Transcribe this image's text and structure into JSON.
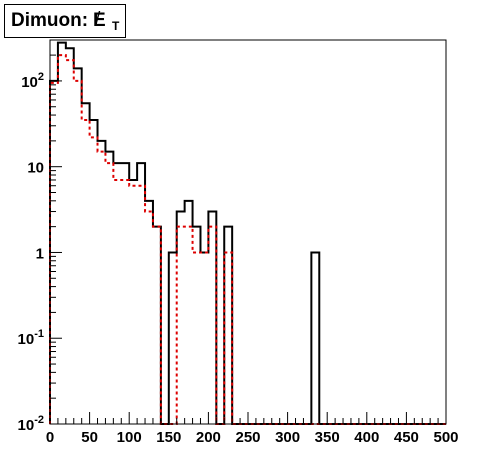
{
  "chart_data": {
    "type": "histogram-step",
    "title": "Dimuon: ",
    "title_symbol": "E",
    "title_symbol_overlay": "/",
    "title_subscript": "T",
    "xlabel": "",
    "ylabel": "",
    "xlim": [
      0,
      500
    ],
    "ylim": [
      0.01,
      300
    ],
    "y_scale": "log",
    "grid": false,
    "bin_width": 10,
    "x_ticks": [
      {
        "value": 0,
        "label": "0"
      },
      {
        "value": 50,
        "label": "50"
      },
      {
        "value": 100,
        "label": "100"
      },
      {
        "value": 150,
        "label": "150"
      },
      {
        "value": 200,
        "label": "200"
      },
      {
        "value": 250,
        "label": "250"
      },
      {
        "value": 300,
        "label": "300"
      },
      {
        "value": 350,
        "label": "350"
      },
      {
        "value": 400,
        "label": "400"
      },
      {
        "value": 450,
        "label": "450"
      },
      {
        "value": 500,
        "label": "500"
      }
    ],
    "y_ticks": [
      {
        "value": 0.01,
        "base": "10",
        "exp": "-2"
      },
      {
        "value": 0.1,
        "base": "10",
        "exp": "-1"
      },
      {
        "value": 1,
        "base": "1",
        "exp": ""
      },
      {
        "value": 10,
        "base": "10",
        "exp": ""
      },
      {
        "value": 100,
        "base": "10",
        "exp": "2"
      }
    ],
    "series": [
      {
        "color": "#000000",
        "style": "solid",
        "bins": [
          [
            0,
            10,
            100
          ],
          [
            10,
            20,
            280
          ],
          [
            20,
            30,
            240
          ],
          [
            30,
            40,
            140
          ],
          [
            40,
            50,
            55
          ],
          [
            50,
            60,
            35
          ],
          [
            60,
            70,
            20
          ],
          [
            70,
            80,
            15
          ],
          [
            80,
            90,
            11
          ],
          [
            90,
            100,
            11
          ],
          [
            100,
            110,
            7
          ],
          [
            110,
            120,
            11
          ],
          [
            120,
            130,
            4
          ],
          [
            130,
            140,
            2
          ],
          [
            140,
            150,
            0
          ],
          [
            150,
            160,
            1
          ],
          [
            160,
            170,
            3
          ],
          [
            170,
            180,
            4
          ],
          [
            180,
            190,
            2
          ],
          [
            190,
            200,
            1
          ],
          [
            200,
            210,
            3
          ],
          [
            210,
            220,
            0
          ],
          [
            220,
            230,
            2
          ],
          [
            230,
            330,
            0
          ],
          [
            330,
            340,
            1
          ],
          [
            340,
            500,
            0
          ]
        ]
      },
      {
        "color": "#dd0000",
        "style": "dashed",
        "bins": [
          [
            0,
            10,
            95
          ],
          [
            10,
            20,
            200
          ],
          [
            20,
            30,
            175
          ],
          [
            30,
            40,
            100
          ],
          [
            40,
            50,
            35
          ],
          [
            50,
            60,
            22
          ],
          [
            60,
            70,
            15
          ],
          [
            70,
            80,
            11
          ],
          [
            80,
            90,
            7
          ],
          [
            90,
            100,
            7
          ],
          [
            100,
            110,
            6
          ],
          [
            110,
            120,
            6
          ],
          [
            120,
            130,
            3
          ],
          [
            130,
            140,
            2
          ],
          [
            140,
            160,
            0
          ],
          [
            160,
            170,
            2
          ],
          [
            170,
            180,
            2
          ],
          [
            180,
            190,
            1
          ],
          [
            190,
            200,
            1
          ],
          [
            200,
            210,
            2
          ],
          [
            210,
            220,
            0
          ],
          [
            220,
            230,
            1
          ],
          [
            230,
            500,
            0
          ]
        ]
      }
    ]
  }
}
